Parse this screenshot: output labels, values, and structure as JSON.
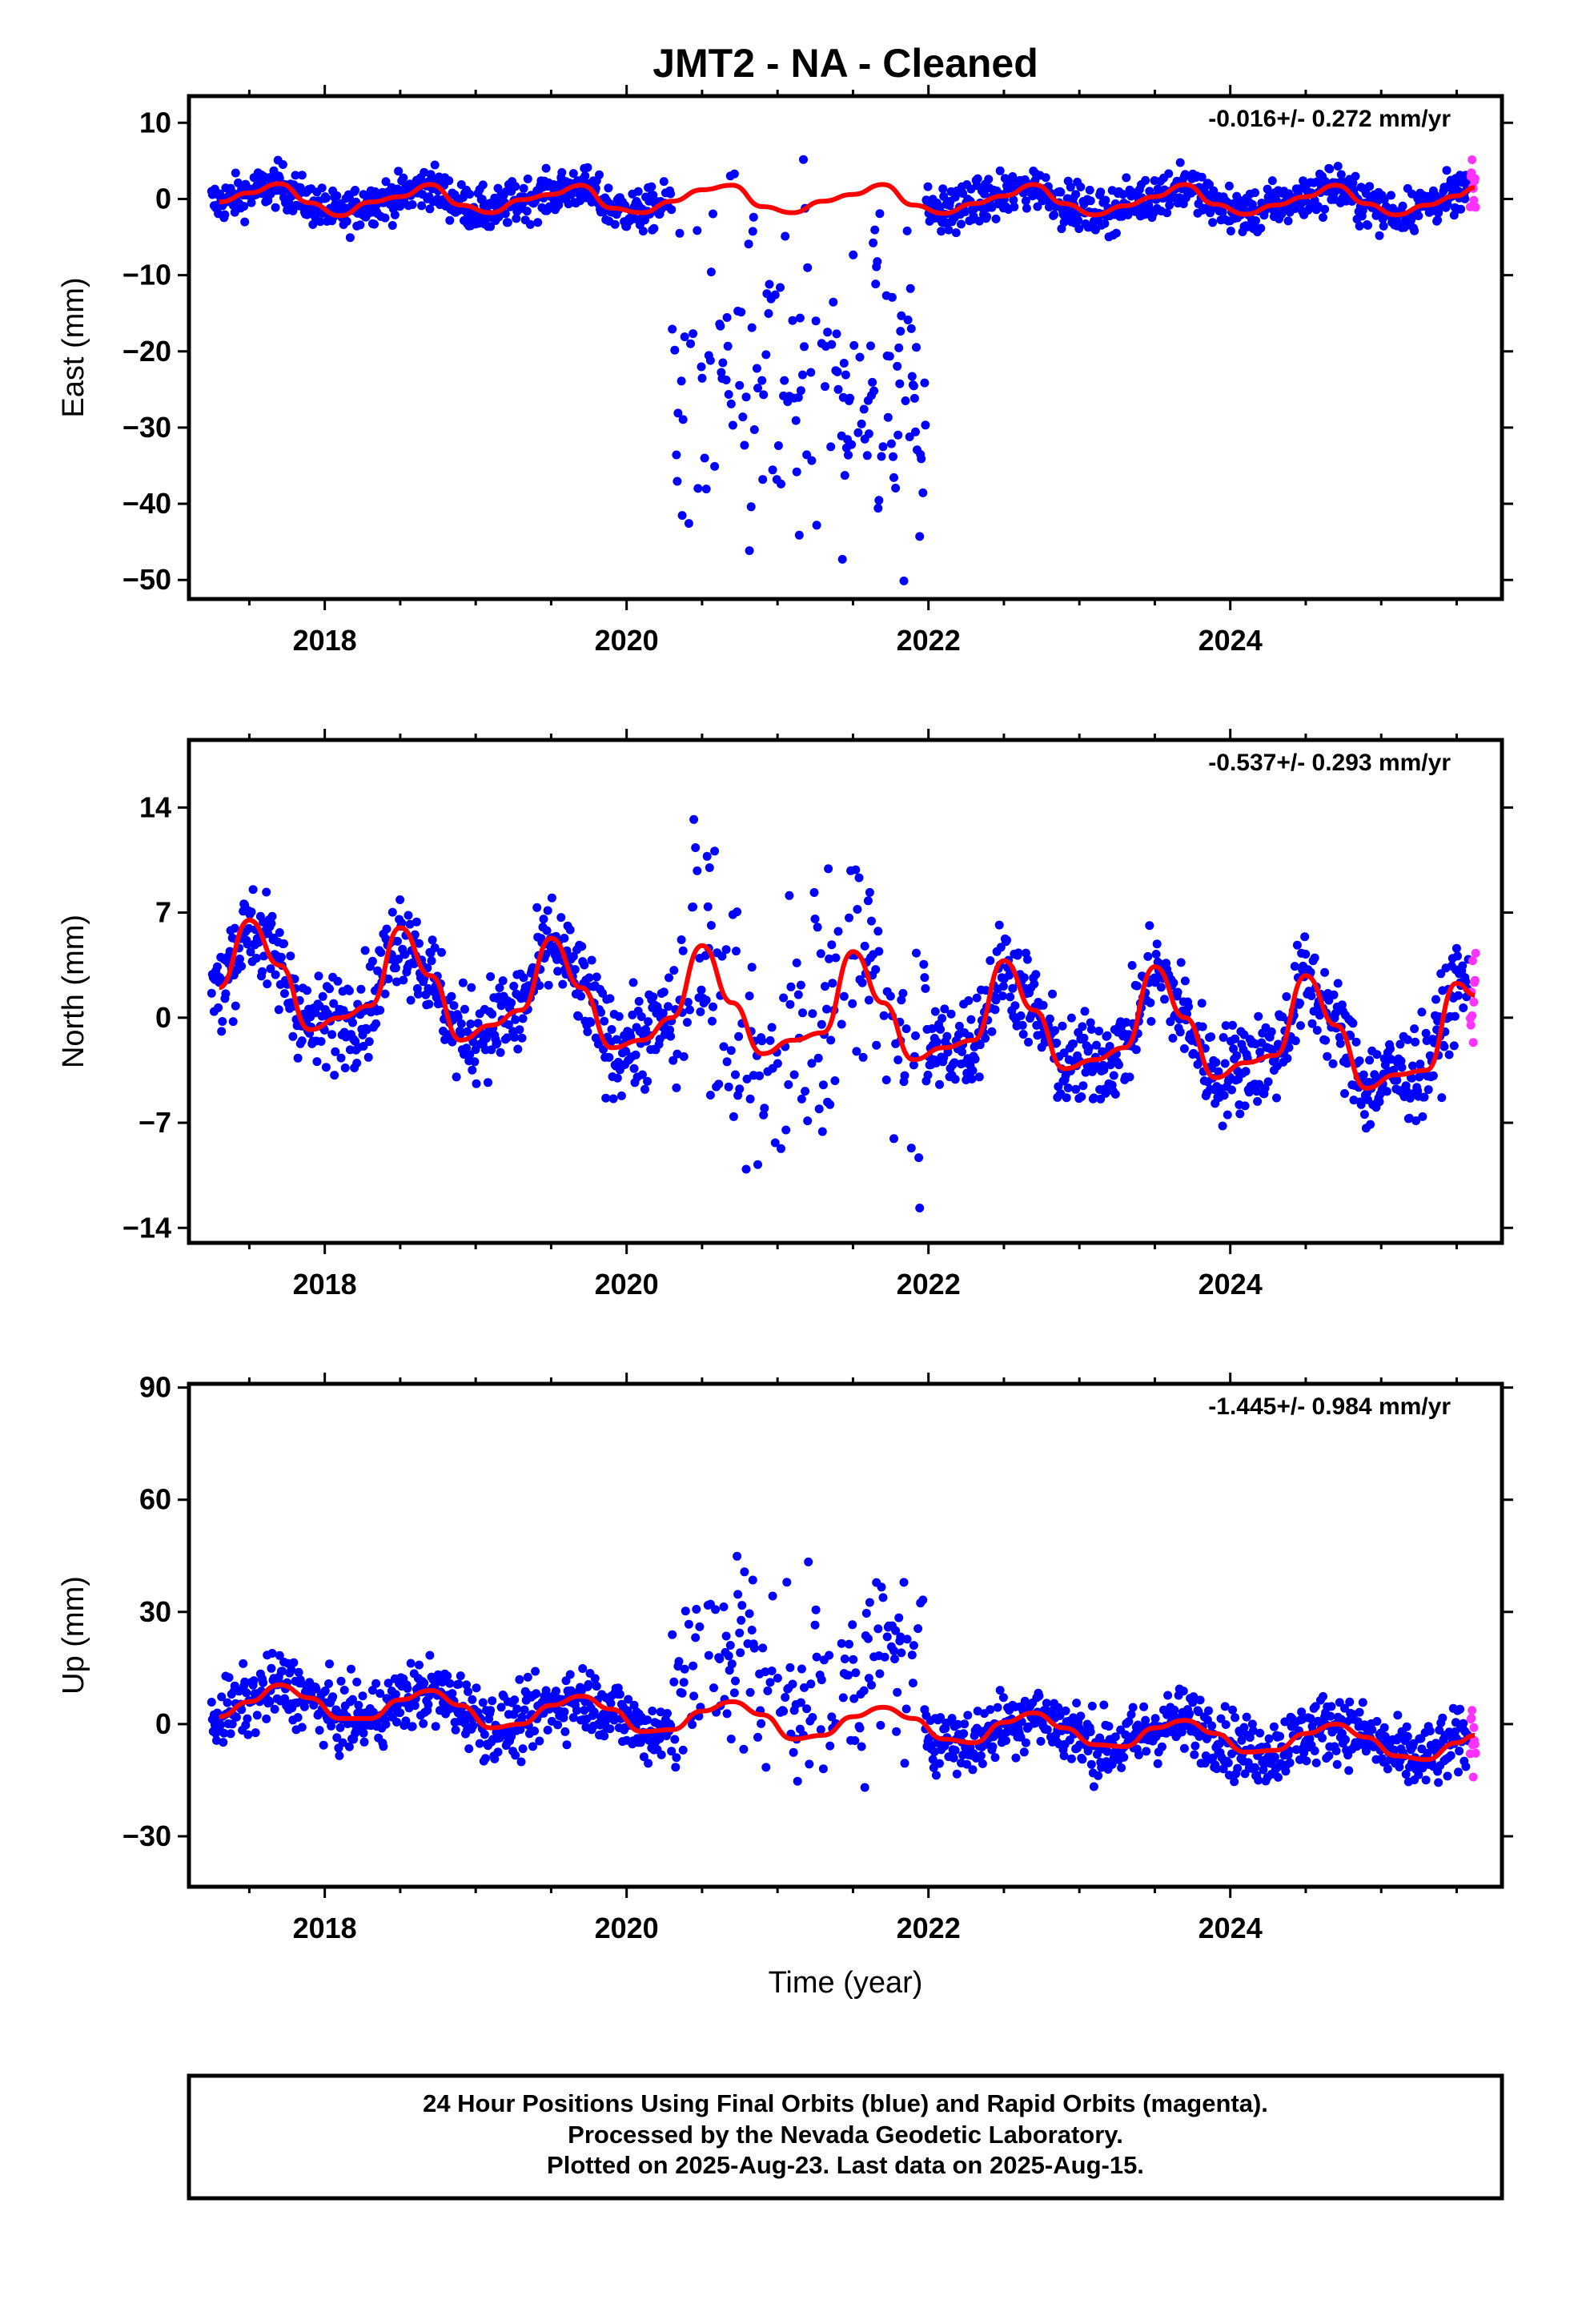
{
  "chart_data": {
    "title": "JMT2  - NA - Cleaned",
    "type": "scatter",
    "xlabel": "Time (year)",
    "xlim": [
      2017.1,
      2025.8
    ],
    "x_ticks": [
      2018,
      2020,
      2022,
      2024
    ],
    "x_minor_ticks": [
      2017.5,
      2018.5,
      2019,
      2019.5,
      2020.5,
      2021,
      2021.5,
      2022.5,
      2023,
      2023.5,
      2024.5,
      2025,
      2025.5
    ],
    "series_colors": {
      "final": "#0000ff",
      "rapid": "#ff33ff",
      "fit": "#ff0000"
    },
    "legend": [
      "24 Hour Positions Using Final Orbits (blue) and Rapid Orbits (magenta).",
      "Processed by the Nevada Geodetic Laboratory.",
      "Plotted on 2025-Aug-23. Last data on 2025-Aug-15."
    ],
    "panels": [
      {
        "name": "east",
        "ylabel": "East (mm)",
        "ylim": [
          -52.5,
          13.5
        ],
        "y_ticks": [
          10,
          0,
          -10,
          -20,
          -30,
          -40,
          -50
        ],
        "rate": "-0.016+/- 0.272 mm/yr",
        "fit": {
          "x": [
            2017.3,
            2017.5,
            2017.7,
            2017.9,
            2018.1,
            2018.3,
            2018.5,
            2018.7,
            2018.9,
            2019.1,
            2019.3,
            2019.5,
            2019.7,
            2019.9,
            2020.1,
            2020.3,
            2020.5,
            2020.7,
            2020.9,
            2021.1,
            2021.3,
            2021.5,
            2021.7,
            2021.9,
            2022.1,
            2022.3,
            2022.5,
            2022.7,
            2022.9,
            2023.1,
            2023.3,
            2023.5,
            2023.7,
            2023.9,
            2024.1,
            2024.3,
            2024.5,
            2024.7,
            2024.9,
            2025.1,
            2025.3,
            2025.5,
            2025.62
          ],
          "y": [
            -0.4,
            0.8,
            2.0,
            -0.5,
            -2.2,
            -0.4,
            0.3,
            1.9,
            -0.8,
            -1.8,
            -0.1,
            0.6,
            1.8,
            -1.2,
            -1.8,
            -0.3,
            1.2,
            1.8,
            -1.0,
            -1.8,
            -0.3,
            0.6,
            1.9,
            -0.8,
            -1.9,
            -0.6,
            0.4,
            1.9,
            -0.6,
            -2.1,
            -0.9,
            0.3,
            1.9,
            -0.7,
            -2.0,
            -0.8,
            0.3,
            1.8,
            -0.6,
            -2.1,
            -0.8,
            0.4,
            1.5
          ]
        }
      },
      {
        "name": "north",
        "ylabel": "North (mm)",
        "ylim": [
          -15,
          18.5
        ],
        "y_ticks": [
          14,
          7,
          0,
          -7,
          -14
        ],
        "rate": "-0.537+/- 0.293 mm/yr",
        "fit": {
          "x": [
            2017.3,
            2017.5,
            2017.7,
            2017.9,
            2018.1,
            2018.3,
            2018.5,
            2018.7,
            2018.9,
            2019.1,
            2019.3,
            2019.5,
            2019.7,
            2019.9,
            2020.1,
            2020.3,
            2020.5,
            2020.7,
            2020.9,
            2021.1,
            2021.3,
            2021.5,
            2021.7,
            2021.9,
            2022.1,
            2022.3,
            2022.5,
            2022.7,
            2022.9,
            2023.1,
            2023.3,
            2023.5,
            2023.7,
            2023.9,
            2024.1,
            2024.3,
            2024.5,
            2024.7,
            2024.9,
            2025.1,
            2025.3,
            2025.5,
            2025.62
          ],
          "y": [
            2.0,
            6.5,
            3.5,
            -0.8,
            0.0,
            0.8,
            6.0,
            2.8,
            -1.5,
            -0.5,
            0.5,
            5.3,
            2.0,
            -2.0,
            -1.5,
            0.0,
            4.8,
            1.0,
            -2.4,
            -1.5,
            -1.0,
            4.4,
            1.0,
            -2.8,
            -2.0,
            -1.5,
            3.8,
            0.5,
            -3.4,
            -2.8,
            -2.0,
            3.4,
            0.0,
            -4.0,
            -3.0,
            -2.5,
            2.8,
            -0.5,
            -4.7,
            -3.8,
            -3.5,
            2.3,
            1.5
          ]
        }
      },
      {
        "name": "up",
        "ylabel": "Up (mm)",
        "ylim": [
          -43.5,
          91
        ],
        "y_ticks": [
          90,
          60,
          30,
          0,
          -30
        ],
        "rate": "-1.445+/- 0.984 mm/yr",
        "fit": {
          "x": [
            2017.3,
            2017.5,
            2017.7,
            2017.9,
            2018.1,
            2018.3,
            2018.5,
            2018.7,
            2018.9,
            2019.1,
            2019.3,
            2019.5,
            2019.7,
            2019.9,
            2020.1,
            2020.3,
            2020.5,
            2020.7,
            2020.9,
            2021.1,
            2021.3,
            2021.5,
            2021.7,
            2021.9,
            2022.1,
            2022.3,
            2022.5,
            2022.7,
            2022.9,
            2023.1,
            2023.3,
            2023.5,
            2023.7,
            2023.9,
            2024.1,
            2024.3,
            2024.5,
            2024.7,
            2024.9,
            2025.1,
            2025.3,
            2025.5,
            2025.62
          ],
          "y": [
            2.0,
            6.0,
            10.5,
            7.0,
            1.5,
            1.5,
            6.5,
            9.0,
            5.0,
            -1.0,
            0.0,
            5.0,
            7.5,
            4.0,
            -2.0,
            -1.5,
            3.5,
            6.0,
            2.5,
            -4.0,
            -3.0,
            2.0,
            4.5,
            1.5,
            -4.0,
            -5.0,
            0.5,
            3.0,
            -1.0,
            -5.5,
            -6.0,
            -1.0,
            1.0,
            -2.5,
            -7.5,
            -7.0,
            -2.5,
            0.0,
            -3.5,
            -8.5,
            -9.5,
            -5.0,
            -3.0
          ]
        }
      }
    ]
  }
}
